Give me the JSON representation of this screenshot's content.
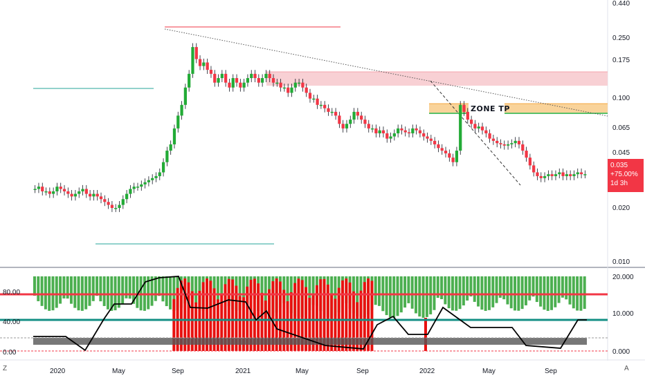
{
  "price_axis": {
    "ticks": [
      "0.440",
      "0.250",
      "0.175",
      "0.100",
      "0.065",
      "0.045",
      "0.020",
      "0.010"
    ]
  },
  "price_tag": {
    "price": "0.035",
    "change": "+75.00%",
    "countdown": "1d 3h",
    "color": "#f23645"
  },
  "annotation": {
    "zone_label": "ZONE TP"
  },
  "indicator_axis_left": [
    "80.00",
    "40.00",
    "0.00"
  ],
  "indicator_axis_right": [
    "20.000",
    "10.000",
    "0.000"
  ],
  "time_axis": [
    "2020",
    "May",
    "Sep",
    "2021",
    "May",
    "Sep",
    "2022",
    "May",
    "Sep"
  ],
  "corner_buttons": {
    "left": "Z",
    "right": "A"
  },
  "colors": {
    "up": "#22ab36",
    "down": "#f23645",
    "support_line": "#26a69a",
    "resistance_line": "#f23645",
    "zone_tp": "#f7c87a",
    "supply_zone": "#f8d0d4",
    "indicator_green": "#4caf50",
    "indicator_red": "#e8110f"
  },
  "chart_data": {
    "type": "candlestick",
    "scale": "log",
    "price_range": [
      0.009,
      0.45
    ],
    "series_closes": [
      0.028,
      0.029,
      0.027,
      0.027,
      0.026,
      0.027,
      0.029,
      0.028,
      0.027,
      0.026,
      0.025,
      0.026,
      0.027,
      0.028,
      0.026,
      0.025,
      0.026,
      0.025,
      0.024,
      0.023,
      0.022,
      0.021,
      0.021,
      0.022,
      0.024,
      0.026,
      0.028,
      0.029,
      0.029,
      0.03,
      0.031,
      0.032,
      0.033,
      0.034,
      0.036,
      0.042,
      0.05,
      0.055,
      0.07,
      0.085,
      0.1,
      0.13,
      0.16,
      0.24,
      0.2,
      0.18,
      0.19,
      0.17,
      0.16,
      0.14,
      0.15,
      0.16,
      0.14,
      0.13,
      0.15,
      0.14,
      0.13,
      0.14,
      0.15,
      0.16,
      0.15,
      0.14,
      0.15,
      0.16,
      0.15,
      0.14,
      0.14,
      0.13,
      0.13,
      0.12,
      0.13,
      0.14,
      0.14,
      0.13,
      0.12,
      0.11,
      0.11,
      0.1,
      0.1,
      0.095,
      0.09,
      0.09,
      0.085,
      0.075,
      0.07,
      0.075,
      0.08,
      0.09,
      0.085,
      0.08,
      0.075,
      0.07,
      0.07,
      0.065,
      0.068,
      0.065,
      0.06,
      0.062,
      0.065,
      0.07,
      0.068,
      0.066,
      0.065,
      0.07,
      0.068,
      0.065,
      0.062,
      0.06,
      0.058,
      0.055,
      0.052,
      0.05,
      0.048,
      0.045,
      0.042,
      0.05,
      0.1,
      0.09,
      0.08,
      0.075,
      0.07,
      0.072,
      0.068,
      0.065,
      0.06,
      0.058,
      0.056,
      0.055,
      0.054,
      0.055,
      0.056,
      0.058,
      0.055,
      0.05,
      0.045,
      0.04,
      0.036,
      0.034,
      0.033,
      0.034,
      0.035,
      0.034,
      0.035,
      0.036,
      0.034,
      0.035,
      0.034,
      0.035,
      0.036,
      0.035,
      0.035
    ]
  }
}
